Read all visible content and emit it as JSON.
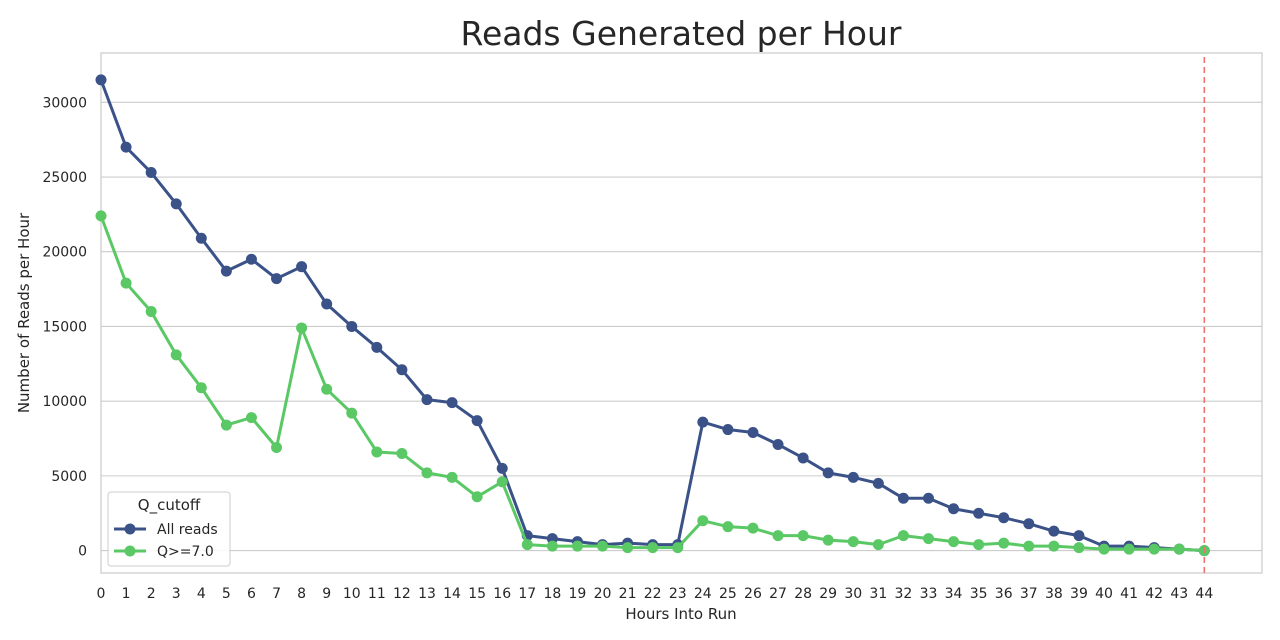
{
  "chart_data": {
    "type": "line",
    "title": "Reads Generated per Hour",
    "xlabel": "Hours Into Run",
    "ylabel": "Number of Reads per Hour",
    "x": [
      0,
      1,
      2,
      3,
      4,
      5,
      6,
      7,
      8,
      9,
      10,
      11,
      12,
      13,
      14,
      15,
      16,
      17,
      18,
      19,
      20,
      21,
      22,
      23,
      24,
      25,
      26,
      27,
      28,
      29,
      30,
      31,
      32,
      33,
      34,
      35,
      36,
      37,
      38,
      39,
      40,
      41,
      42,
      43,
      44
    ],
    "x_tick_labels": [
      "0",
      "1",
      "2",
      "3",
      "4",
      "5",
      "6",
      "7",
      "8",
      "9",
      "10",
      "11",
      "12",
      "13",
      "14",
      "15",
      "16",
      "17",
      "18",
      "19",
      "20",
      "21",
      "22",
      "23",
      "24",
      "25",
      "26",
      "27",
      "28",
      "29",
      "30",
      "31",
      "32",
      "33",
      "34",
      "35",
      "36",
      "37",
      "38",
      "39",
      "40",
      "41",
      "42",
      "43",
      "44"
    ],
    "xlim": [
      0,
      46.3
    ],
    "ylim": [
      -1500,
      33300
    ],
    "y_ticks": [
      0,
      5000,
      10000,
      15000,
      20000,
      25000,
      30000
    ],
    "y_tick_labels": [
      "0",
      "5000",
      "10000",
      "15000",
      "20000",
      "25000",
      "30000"
    ],
    "grid": true,
    "legend": {
      "title": "Q_cutoff",
      "placement": "lower-left"
    },
    "series": [
      {
        "name": "All reads",
        "color": "#3a5288",
        "values": [
          31500,
          27000,
          25300,
          23200,
          20900,
          18700,
          19500,
          18200,
          19000,
          16500,
          15000,
          13600,
          12100,
          10100,
          9900,
          8700,
          5500,
          1000,
          800,
          600,
          400,
          500,
          400,
          400,
          8600,
          8100,
          7900,
          7100,
          6200,
          5200,
          4900,
          4500,
          3500,
          3500,
          2800,
          2500,
          2200,
          1800,
          1300,
          1000,
          300,
          300,
          200,
          100,
          0
        ]
      },
      {
        "name": "Q>=7.0",
        "color": "#5ac864",
        "values": [
          22400,
          17900,
          16000,
          13100,
          10900,
          8400,
          8900,
          6900,
          14900,
          10800,
          9200,
          6600,
          6500,
          5200,
          4900,
          3600,
          4600,
          400,
          300,
          300,
          300,
          200,
          200,
          200,
          2000,
          1600,
          1500,
          1000,
          1000,
          700,
          600,
          400,
          1000,
          800,
          600,
          400,
          500,
          300,
          300,
          200,
          100,
          100,
          100,
          100,
          0
        ]
      }
    ],
    "vline": {
      "x": 44,
      "color": "#f07070"
    }
  }
}
